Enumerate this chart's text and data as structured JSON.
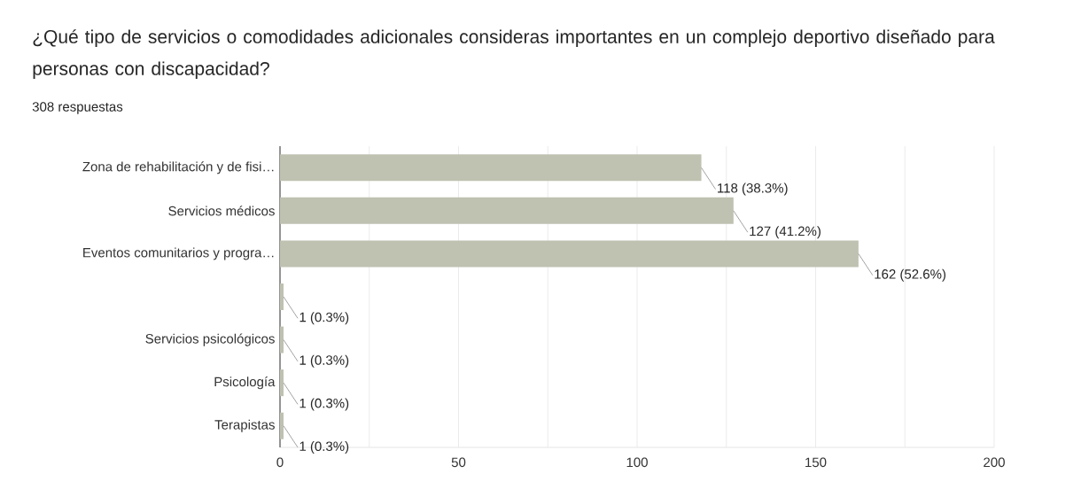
{
  "chart_data": {
    "type": "bar",
    "orientation": "horizontal",
    "title": "¿Qué tipo de servicios o comodidades adicionales consideras importantes en un complejo deportivo diseñado para personas con discapacidad?",
    "subtitle": "308 respuestas",
    "categories": [
      "Zona de rehabilitación y de fisi…",
      "Servicios médicos",
      "Eventos comunitarios y progra…",
      null,
      "Servicios psicológicos",
      "Psicología",
      "Terapistas"
    ],
    "values": [
      118,
      127,
      162,
      1,
      1,
      1,
      1
    ],
    "value_labels": [
      "118 (38.3%)",
      "127 (41.2%)",
      "162 (52.6%)",
      "1 (0.3%)",
      "1 (0.3%)",
      "1 (0.3%)",
      "1 (0.3%)"
    ],
    "color": "#bfc1b1",
    "xlim": [
      0,
      200
    ],
    "xticks": [
      0,
      {
        "value": 25,
        "label": null
      },
      50,
      {
        "value": 75,
        "label": null
      },
      100,
      {
        "value": 125,
        "label": null
      },
      150,
      {
        "value": 175,
        "label": null
      },
      200
    ],
    "grid": "x"
  }
}
